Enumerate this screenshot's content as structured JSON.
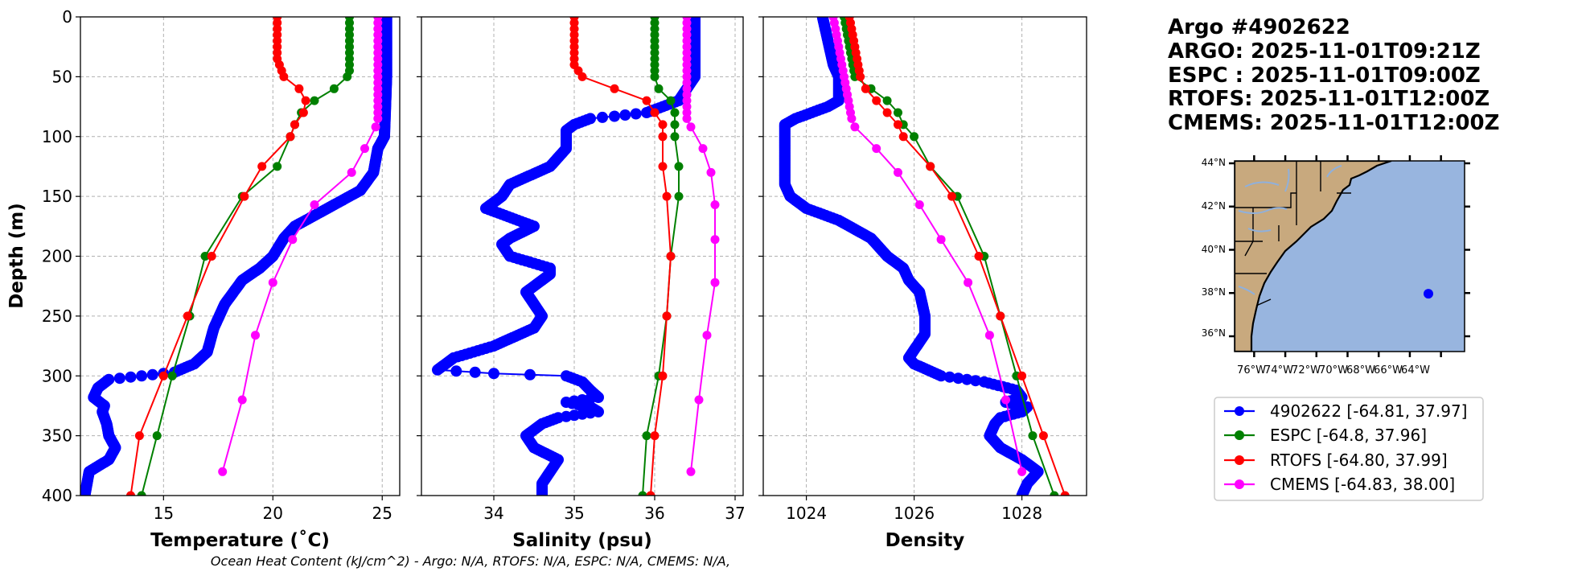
{
  "colors": {
    "argo": "#0000ff",
    "espc": "#008000",
    "rtofs": "#ff0000",
    "cmems": "#ff00ff",
    "land": "#c8a97e",
    "ocean": "#98b5df"
  },
  "title_lines": [
    "Argo #4902622",
    "ARGO: 2025-11-01T09:21Z",
    "ESPC : 2025-11-01T09:00Z",
    "RTOFS: 2025-11-01T12:00Z",
    "CMEMS: 2025-11-01T12:00Z"
  ],
  "footer": "Ocean Heat Content (kJ/cm^2) - Argo: N/A,  RTOFS: N/A,  ESPC: N/A,  CMEMS: N/A,",
  "ylabel": "Depth (m)",
  "yticks": [
    "0",
    "50",
    "100",
    "150",
    "200",
    "250",
    "300",
    "350",
    "400"
  ],
  "legend": [
    {
      "key": "argo",
      "label": "4902622 [-64.81, 37.97]"
    },
    {
      "key": "espc",
      "label": "ESPC [-64.8, 37.96]"
    },
    {
      "key": "rtofs",
      "label": "RTOFS [-64.80, 37.99]"
    },
    {
      "key": "cmems",
      "label": "CMEMS [-64.83, 38.00]"
    }
  ],
  "map": {
    "lat_labels": [
      "44°N",
      "42°N",
      "40°N",
      "38°N",
      "36°N"
    ],
    "lon_labels": [
      "76°W",
      "74°W",
      "72°W",
      "70°W",
      "68°W",
      "66°W",
      "64°W"
    ],
    "float_lon": -64.81,
    "float_lat": 37.97
  },
  "chart_data": [
    {
      "type": "line",
      "title": "",
      "xlabel": "Temperature (˚C)",
      "ylabel": "Depth (m)",
      "xlim": [
        11.2,
        25.8
      ],
      "ylim": [
        400,
        0
      ],
      "xticks": [
        15,
        20,
        25
      ],
      "series": [
        {
          "name": "4902622",
          "key": "argo",
          "dense": true,
          "depth": [
            0,
            50,
            100,
            110,
            130,
            145,
            155,
            165,
            175,
            185,
            200,
            210,
            220,
            230,
            240,
            260,
            280,
            290,
            297,
            300,
            303,
            310,
            318,
            325,
            330,
            340,
            350,
            360,
            370,
            380,
            390,
            400
          ],
          "value": [
            25.2,
            25.2,
            25.1,
            24.8,
            24.6,
            24.0,
            23.0,
            22.0,
            21.0,
            20.5,
            20.0,
            19.4,
            18.6,
            18.2,
            17.8,
            17.3,
            17.0,
            16.4,
            15.5,
            14.0,
            12.5,
            12.0,
            11.8,
            12.3,
            12.2,
            12.4,
            12.5,
            12.8,
            12.5,
            11.6,
            11.5,
            11.4
          ]
        },
        {
          "name": "ESPC",
          "key": "espc",
          "depth": [
            0,
            5,
            10,
            15,
            20,
            25,
            30,
            35,
            40,
            45,
            50,
            60,
            70,
            80,
            90,
            100,
            125,
            150,
            200,
            250,
            300,
            350,
            400
          ],
          "value": [
            23.5,
            23.5,
            23.5,
            23.5,
            23.5,
            23.5,
            23.5,
            23.5,
            23.5,
            23.5,
            23.4,
            22.8,
            21.9,
            21.3,
            21.0,
            20.8,
            20.2,
            18.6,
            16.9,
            16.2,
            15.4,
            14.7,
            14.0
          ]
        },
        {
          "name": "RTOFS",
          "key": "rtofs",
          "depth": [
            0,
            5,
            10,
            15,
            20,
            25,
            30,
            35,
            40,
            45,
            50,
            60,
            70,
            80,
            90,
            100,
            125,
            150,
            200,
            250,
            300,
            350,
            400
          ],
          "value": [
            20.2,
            20.2,
            20.2,
            20.2,
            20.2,
            20.2,
            20.2,
            20.2,
            20.3,
            20.4,
            20.5,
            21.2,
            21.5,
            21.4,
            21.0,
            20.8,
            19.5,
            18.7,
            17.2,
            16.1,
            15.0,
            13.9,
            13.5
          ]
        },
        {
          "name": "CMEMS",
          "key": "cmems",
          "depth": [
            0,
            5,
            10,
            15,
            20,
            25,
            30,
            35,
            40,
            45,
            50,
            55,
            60,
            65,
            70,
            75,
            80,
            85,
            92,
            110,
            130,
            157,
            186,
            222,
            266,
            320,
            380
          ],
          "value": [
            24.8,
            24.8,
            24.8,
            24.8,
            24.8,
            24.8,
            24.8,
            24.8,
            24.8,
            24.8,
            24.8,
            24.8,
            24.8,
            24.8,
            24.8,
            24.8,
            24.8,
            24.8,
            24.7,
            24.2,
            23.6,
            21.9,
            20.9,
            20.0,
            19.2,
            18.6,
            17.7
          ]
        }
      ]
    },
    {
      "type": "line",
      "title": "",
      "xlabel": "Salinity (psu)",
      "ylabel": "",
      "xlim": [
        33.1,
        37.1
      ],
      "ylim": [
        400,
        0
      ],
      "xticks": [
        34,
        35,
        36,
        37
      ],
      "series": [
        {
          "name": "4902622",
          "key": "argo",
          "dense": true,
          "depth": [
            0,
            50,
            60,
            70,
            75,
            80,
            83,
            85,
            90,
            95,
            100,
            110,
            125,
            140,
            150,
            160,
            165,
            175,
            185,
            190,
            200,
            210,
            215,
            220,
            230,
            250,
            260,
            275,
            285,
            295,
            298,
            300,
            305,
            312,
            318,
            322,
            326,
            330,
            335,
            340,
            350,
            360,
            370,
            380,
            390,
            400
          ],
          "value": [
            36.5,
            36.5,
            36.4,
            36.3,
            36.1,
            35.9,
            35.5,
            35.2,
            35.0,
            34.9,
            34.9,
            34.9,
            34.7,
            34.2,
            34.1,
            33.9,
            34.1,
            34.5,
            34.2,
            34.1,
            34.2,
            34.7,
            34.7,
            34.6,
            34.4,
            34.6,
            34.5,
            34.0,
            33.5,
            33.3,
            34.0,
            34.9,
            35.1,
            35.2,
            35.3,
            34.9,
            35.2,
            35.3,
            34.8,
            34.6,
            34.4,
            34.5,
            34.8,
            34.7,
            34.6,
            34.6
          ]
        },
        {
          "name": "ESPC",
          "key": "espc",
          "depth": [
            0,
            5,
            10,
            15,
            20,
            25,
            30,
            35,
            40,
            45,
            50,
            60,
            70,
            80,
            90,
            100,
            125,
            150,
            200,
            250,
            300,
            350,
            400
          ],
          "value": [
            36.0,
            36.0,
            36.0,
            36.0,
            36.0,
            36.0,
            36.0,
            36.0,
            36.0,
            36.0,
            36.0,
            36.05,
            36.2,
            36.25,
            36.25,
            36.25,
            36.3,
            36.3,
            36.2,
            36.15,
            36.05,
            35.9,
            35.85
          ]
        },
        {
          "name": "RTOFS",
          "key": "rtofs",
          "depth": [
            0,
            5,
            10,
            15,
            20,
            25,
            30,
            35,
            40,
            45,
            50,
            60,
            70,
            80,
            90,
            100,
            125,
            150,
            200,
            250,
            300,
            350,
            400
          ],
          "value": [
            35.0,
            35.0,
            35.0,
            35.0,
            35.0,
            35.0,
            35.0,
            35.0,
            35.0,
            35.05,
            35.1,
            35.5,
            35.9,
            36.0,
            36.1,
            36.1,
            36.1,
            36.15,
            36.2,
            36.15,
            36.1,
            36.0,
            35.95
          ]
        },
        {
          "name": "CMEMS",
          "key": "cmems",
          "depth": [
            0,
            5,
            10,
            15,
            20,
            25,
            30,
            35,
            40,
            45,
            50,
            55,
            60,
            65,
            70,
            75,
            80,
            85,
            92,
            110,
            130,
            157,
            186,
            222,
            266,
            320,
            380
          ],
          "value": [
            36.4,
            36.4,
            36.4,
            36.4,
            36.4,
            36.4,
            36.4,
            36.4,
            36.4,
            36.4,
            36.4,
            36.4,
            36.4,
            36.4,
            36.4,
            36.4,
            36.4,
            36.4,
            36.45,
            36.6,
            36.7,
            36.75,
            36.75,
            36.75,
            36.65,
            36.55,
            36.45
          ]
        }
      ]
    },
    {
      "type": "line",
      "title": "",
      "xlabel": "Density",
      "ylabel": "",
      "xlim": [
        1023.2,
        1029.2
      ],
      "ylim": [
        400,
        0
      ],
      "xticks": [
        1024,
        1026,
        1028
      ],
      "series": [
        {
          "name": "4902622",
          "key": "argo",
          "dense": true,
          "depth": [
            0,
            20,
            40,
            50,
            60,
            70,
            75,
            80,
            85,
            90,
            100,
            120,
            140,
            150,
            160,
            170,
            185,
            200,
            210,
            220,
            230,
            250,
            265,
            285,
            290,
            300,
            305,
            312,
            318,
            322,
            326,
            330,
            335,
            340,
            350,
            360,
            370,
            380,
            390,
            400
          ],
          "value": [
            1024.3,
            1024.4,
            1024.5,
            1024.6,
            1024.6,
            1024.6,
            1024.4,
            1024.1,
            1023.8,
            1023.6,
            1023.6,
            1023.6,
            1023.6,
            1023.7,
            1024.0,
            1024.6,
            1025.2,
            1025.5,
            1025.8,
            1025.9,
            1026.1,
            1026.2,
            1026.2,
            1025.9,
            1026.0,
            1026.5,
            1027.3,
            1027.9,
            1028.0,
            1027.7,
            1028.1,
            1028.0,
            1027.6,
            1027.5,
            1027.4,
            1027.6,
            1028.0,
            1028.3,
            1028.1,
            1028.0
          ]
        },
        {
          "name": "ESPC",
          "key": "espc",
          "depth": [
            0,
            5,
            10,
            15,
            20,
            25,
            30,
            35,
            40,
            45,
            50,
            60,
            70,
            80,
            90,
            100,
            125,
            150,
            200,
            250,
            300,
            350,
            400
          ],
          "value": [
            1024.7,
            1024.72,
            1024.74,
            1024.76,
            1024.78,
            1024.8,
            1024.82,
            1024.84,
            1024.86,
            1024.88,
            1024.9,
            1025.2,
            1025.5,
            1025.7,
            1025.8,
            1026.0,
            1026.3,
            1026.8,
            1027.3,
            1027.6,
            1027.9,
            1028.2,
            1028.6
          ]
        },
        {
          "name": "RTOFS",
          "key": "rtofs",
          "depth": [
            0,
            5,
            10,
            15,
            20,
            25,
            30,
            35,
            40,
            45,
            50,
            60,
            70,
            80,
            90,
            100,
            125,
            150,
            200,
            250,
            300,
            350,
            400
          ],
          "value": [
            1024.8,
            1024.82,
            1024.84,
            1024.86,
            1024.88,
            1024.9,
            1024.92,
            1024.94,
            1024.96,
            1024.98,
            1025.0,
            1025.1,
            1025.3,
            1025.5,
            1025.7,
            1025.8,
            1026.3,
            1026.7,
            1027.2,
            1027.6,
            1028.0,
            1028.4,
            1028.8
          ]
        },
        {
          "name": "CMEMS",
          "key": "cmems",
          "depth": [
            0,
            5,
            10,
            15,
            20,
            25,
            30,
            35,
            40,
            45,
            50,
            55,
            60,
            65,
            70,
            75,
            80,
            85,
            92,
            110,
            130,
            157,
            186,
            222,
            266,
            320,
            380
          ],
          "value": [
            1024.5,
            1024.52,
            1024.54,
            1024.56,
            1024.58,
            1024.6,
            1024.62,
            1024.64,
            1024.66,
            1024.68,
            1024.7,
            1024.72,
            1024.74,
            1024.76,
            1024.78,
            1024.8,
            1024.82,
            1024.84,
            1024.9,
            1025.3,
            1025.7,
            1026.1,
            1026.5,
            1027.0,
            1027.4,
            1027.7,
            1028.0
          ]
        }
      ]
    }
  ]
}
